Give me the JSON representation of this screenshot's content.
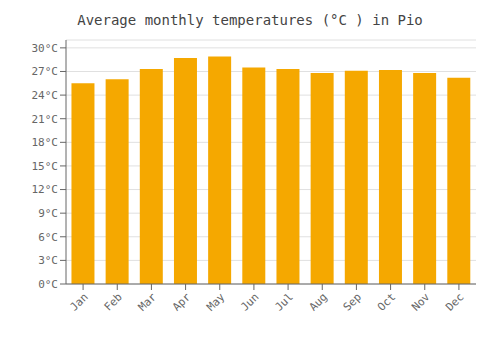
{
  "chart_data": {
    "type": "bar",
    "title": "Average monthly temperatures (°C ) in Pio",
    "categories": [
      "Jan",
      "Feb",
      "Mar",
      "Apr",
      "May",
      "Jun",
      "Jul",
      "Aug",
      "Sep",
      "Oct",
      "Nov",
      "Dec"
    ],
    "values": [
      25.5,
      26.0,
      27.3,
      28.7,
      28.9,
      27.5,
      27.3,
      26.8,
      27.1,
      27.2,
      26.8,
      26.2
    ],
    "color": "#F5A800",
    "ylim": [
      0,
      31
    ],
    "yticks": [
      {
        "value": 0,
        "label": "0°C"
      },
      {
        "value": 3,
        "label": "3°C"
      },
      {
        "value": 6,
        "label": "6°C"
      },
      {
        "value": 9,
        "label": "9°C"
      },
      {
        "value": 12,
        "label": "12°C"
      },
      {
        "value": 15,
        "label": "15°C"
      },
      {
        "value": 18,
        "label": "18°C"
      },
      {
        "value": 21,
        "label": "21°C"
      },
      {
        "value": 24,
        "label": "24°C"
      },
      {
        "value": 27,
        "label": "27°C"
      },
      {
        "value": 30,
        "label": "30°C"
      }
    ],
    "grid": true
  }
}
